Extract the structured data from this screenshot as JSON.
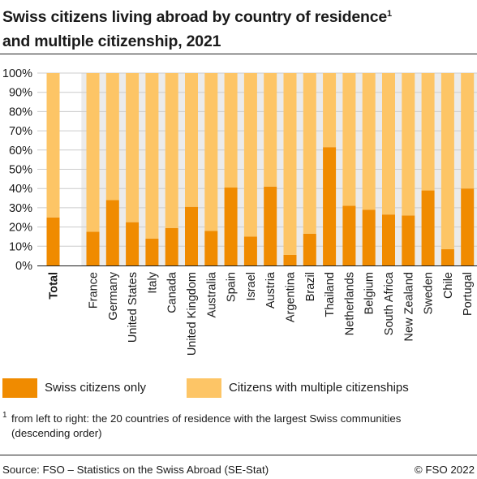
{
  "title": "Swiss citizens living abroad by country of residence",
  "title_line2": "and multiple citizenship, 2021",
  "title_footnote_marker": "1",
  "colors": {
    "swiss_only": "#f08b00",
    "multiple": "#fdc566",
    "plot_bg": "#ebebeb",
    "gridline": "#cccccc"
  },
  "chart_data": {
    "type": "bar",
    "stacked": true,
    "percent_stacked": true,
    "categories": [
      "Total",
      "France",
      "Germany",
      "United States",
      "Italy",
      "Canada",
      "United Kingdom",
      "Australia",
      "Spain",
      "Israel",
      "Austria",
      "Argentina",
      "Brazil",
      "Thailand",
      "Netherlands",
      "Belgium",
      "South Africa",
      "New Zealand",
      "Sweden",
      "Chile",
      "Portugal"
    ],
    "bold_categories": [
      "Total"
    ],
    "series": [
      {
        "name": "Swiss citizens only",
        "color": "#f08b00",
        "values": [
          25,
          17.5,
          34,
          22.5,
          14,
          19.5,
          30.5,
          18,
          40.5,
          15,
          41,
          5.5,
          16.5,
          61.5,
          31,
          29,
          26.5,
          26,
          39,
          8.5,
          40
        ]
      },
      {
        "name": "Citizens with multiple citizenships",
        "color": "#fdc566",
        "values": [
          75,
          82.5,
          66,
          77.5,
          86,
          80.5,
          69.5,
          82,
          59.5,
          85,
          59,
          94.5,
          83.5,
          38.5,
          69,
          71,
          73.5,
          74,
          61,
          91.5,
          60
        ]
      }
    ],
    "ylim": [
      0,
      100
    ],
    "yticks": [
      "0%",
      "10%",
      "20%",
      "30%",
      "40%",
      "50%",
      "60%",
      "70%",
      "80%",
      "90%",
      "100%"
    ],
    "grid": true,
    "legend_position": "bottom",
    "xlabel": "",
    "ylabel": ""
  },
  "legend": [
    {
      "label": "Swiss citizens only",
      "color": "#f08b00"
    },
    {
      "label": "Citizens with multiple citizenships",
      "color": "#fdc566"
    }
  ],
  "footnote": {
    "marker": "1",
    "text": "from left to right: the 20 countries of residence with the largest Swiss communities (descending order)"
  },
  "source": "Source: FSO – Statistics on the Swiss Abroad (SE-Stat)",
  "copyright": "© FSO 2022"
}
